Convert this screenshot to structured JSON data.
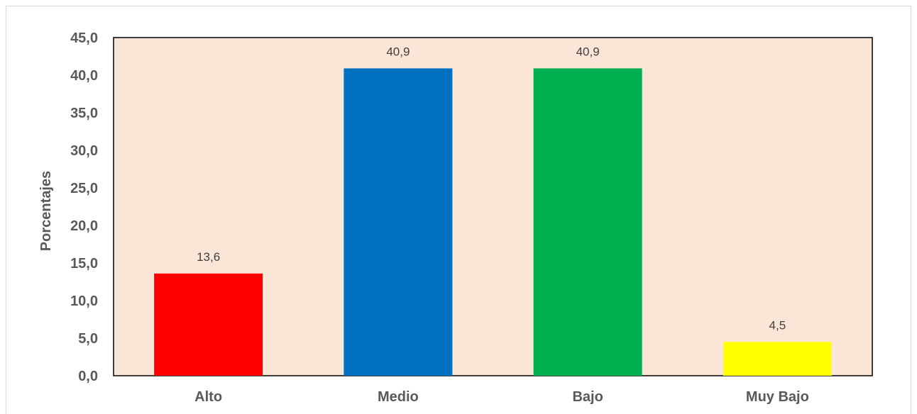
{
  "chart_data": {
    "type": "bar",
    "title": "",
    "xlabel": "",
    "ylabel": "Porcentajes",
    "categories": [
      "Alto",
      "Medio",
      "Bajo",
      "Muy Bajo"
    ],
    "values": [
      13.6,
      40.9,
      40.9,
      4.5
    ],
    "data_labels": [
      "13,6",
      "40,9",
      "40,9",
      "4,5"
    ],
    "bar_colors": [
      "#ff0000",
      "#0070c0",
      "#00b050",
      "#ffff00"
    ],
    "plot_background": "#fbe5d6",
    "ylim": [
      0,
      45
    ],
    "yticks": [
      0,
      5,
      10,
      15,
      20,
      25,
      30,
      35,
      40,
      45
    ],
    "ytick_labels": [
      "0,0",
      "5,0",
      "10,0",
      "15,0",
      "20,0",
      "25,0",
      "30,0",
      "35,0",
      "40,0",
      "45,0"
    ],
    "grid": false,
    "legend": "none"
  }
}
